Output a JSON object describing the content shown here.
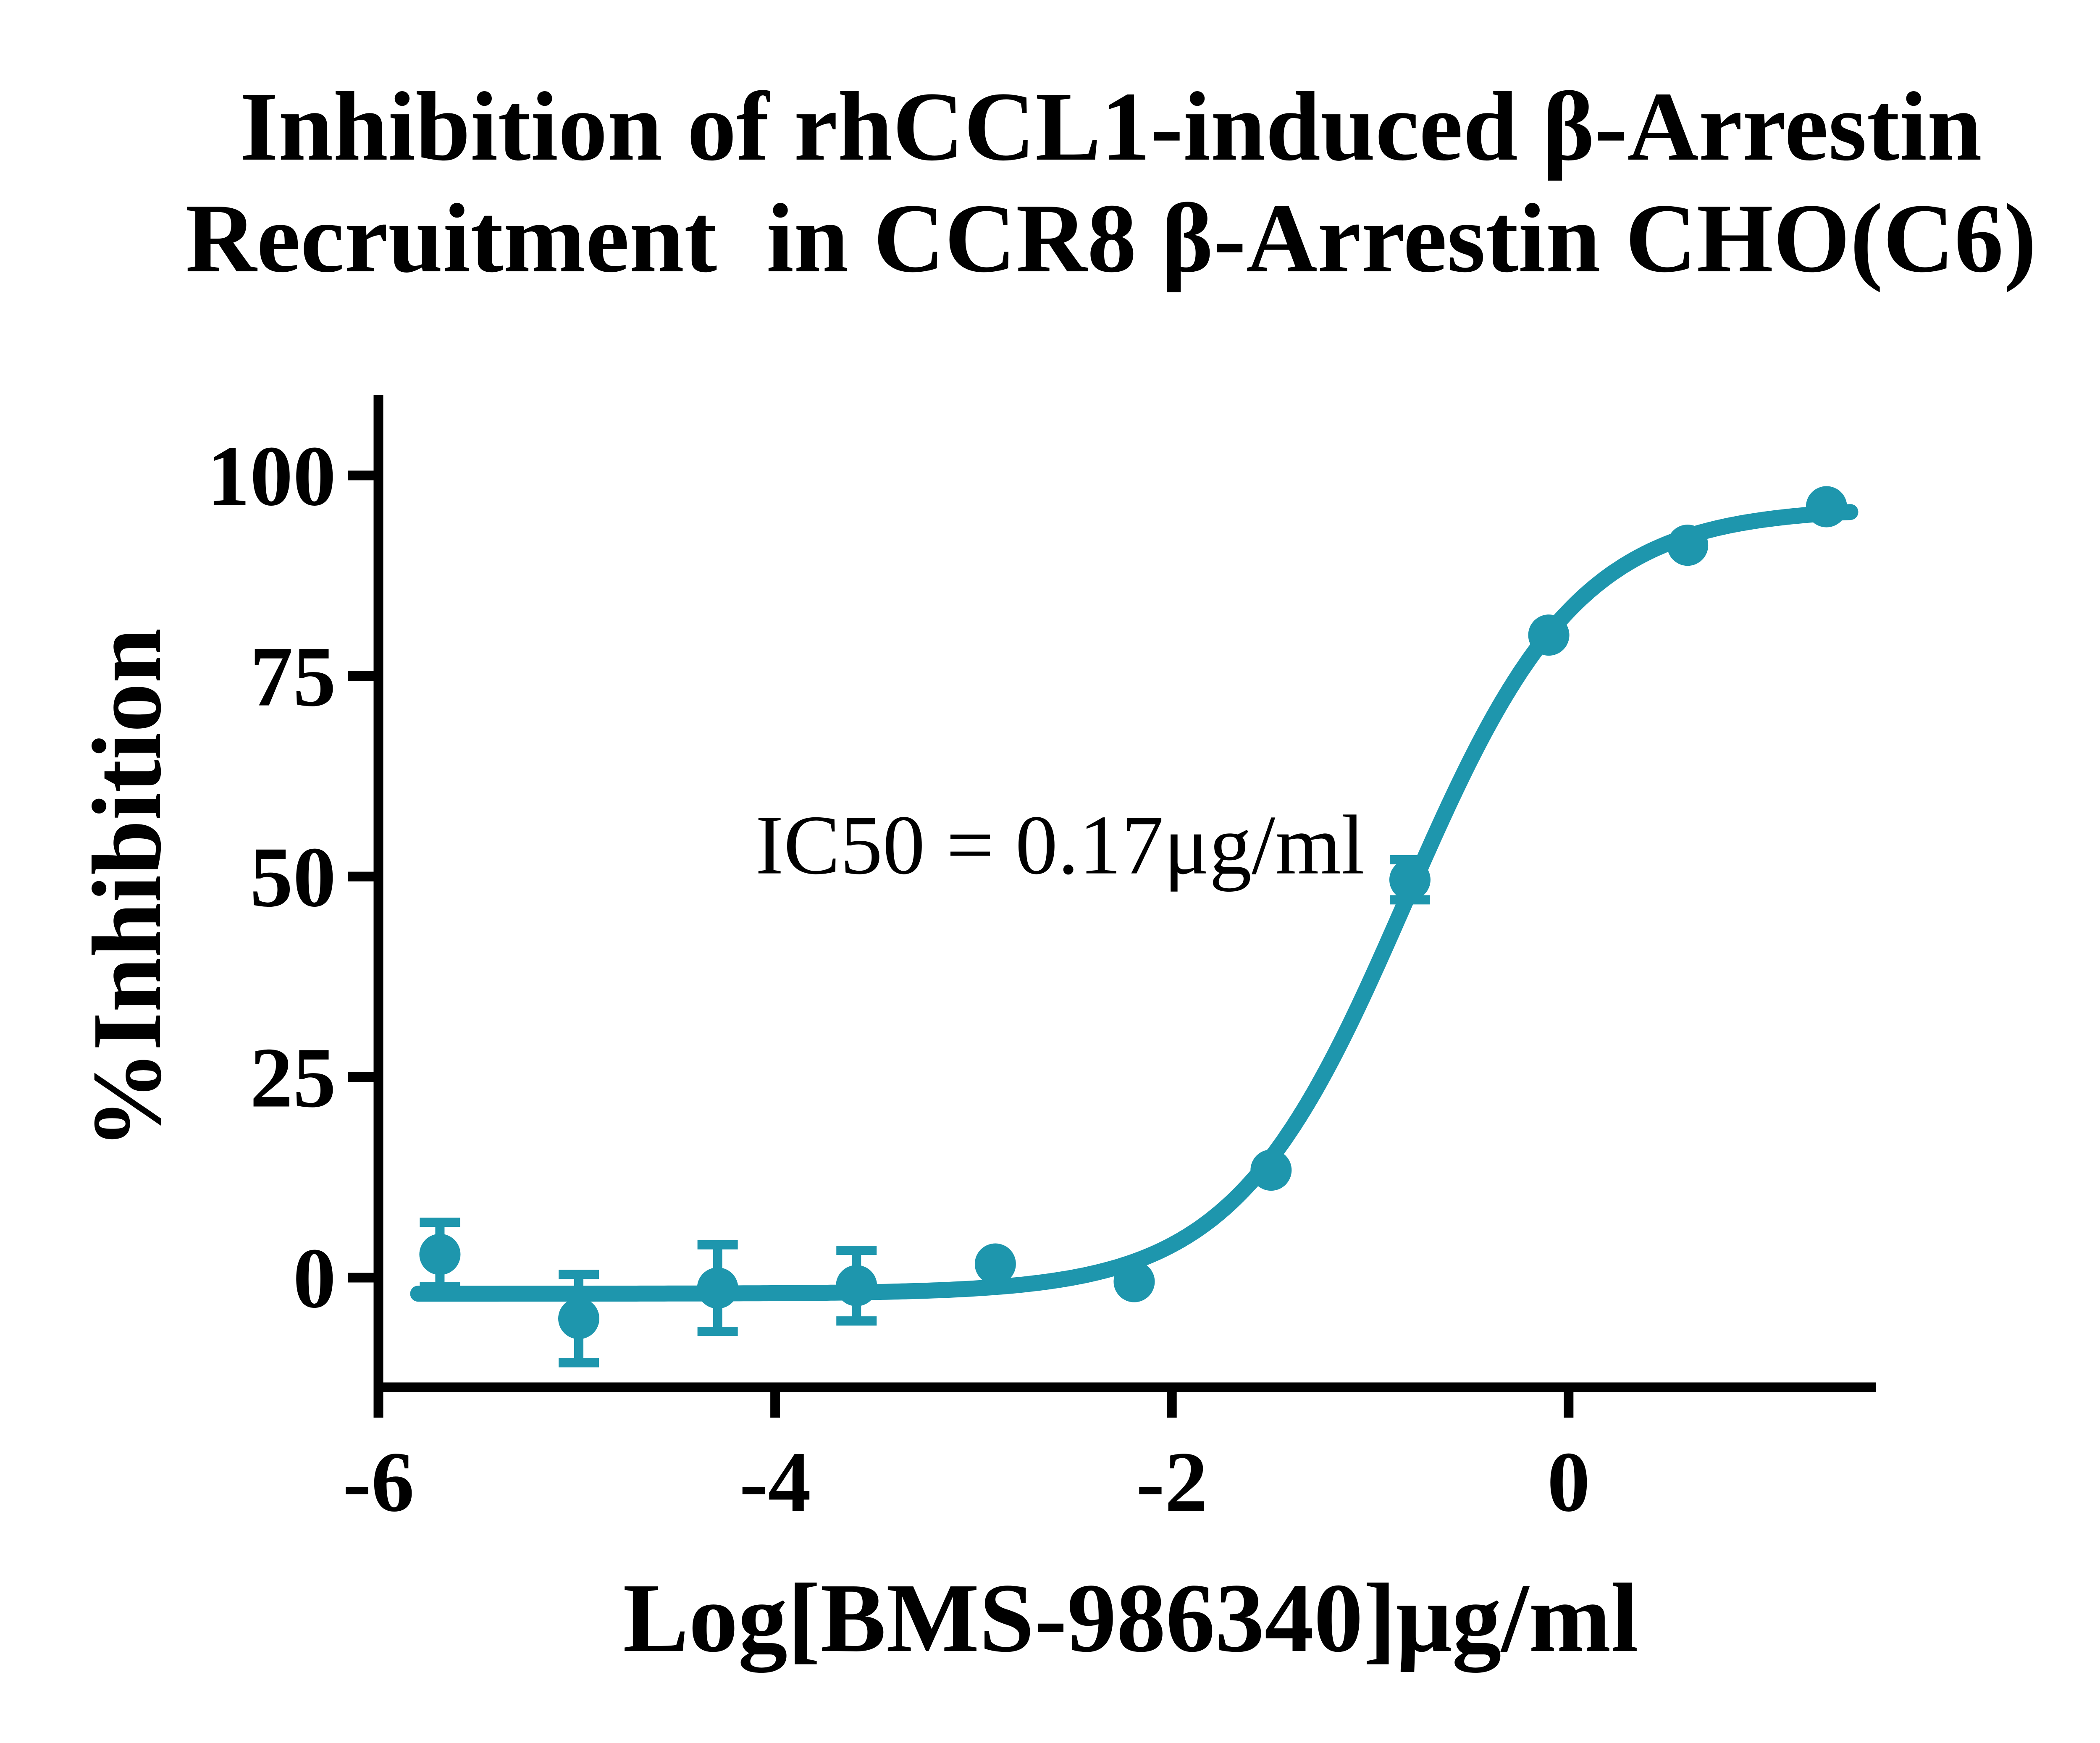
{
  "title": {
    "line1": "Inhibition of rhCCL1-induced β-Arrestin",
    "line2": "Recruitment  in CCR8 β-Arrestin CHO(C6)"
  },
  "chart_data": {
    "type": "scatter",
    "title": "Inhibition of rhCCL1-induced β-Arrestin Recruitment  in CCR8 β-Arrestin CHO(C6)",
    "title_lines": [
      "Inhibition of rhCCL1-induced β-Arrestin",
      "Recruitment  in CCR8 β-Arrestin CHO(C6)"
    ],
    "xlabel": "Log[BMS-986340]μg/ml",
    "ylabel": "%Inhibition",
    "annotation": "IC50 = 0.17μg/ml",
    "ic50_value_text": "0.17μg/ml",
    "x_tick_labels": [
      "-6",
      "-4",
      "-2",
      "0"
    ],
    "x_tick_values": [
      -6,
      -4,
      -2,
      0
    ],
    "y_tick_labels": [
      "0",
      "25",
      "50",
      "75",
      "100"
    ],
    "y_tick_values": [
      0,
      25,
      50,
      75,
      100
    ],
    "xlim": [
      -6.03,
      1.55
    ],
    "ylim": [
      -14,
      110
    ],
    "grid": false,
    "legend": "none",
    "accent_color": "#1E96AD",
    "series": [
      {
        "name": "BMS-986340",
        "color": "#1E96AD",
        "marker": "circle",
        "points": [
          {
            "x": -5.69,
            "y": 2.9,
            "sem": 4.0
          },
          {
            "x": -4.99,
            "y": -5.1,
            "sem": 5.5
          },
          {
            "x": -4.29,
            "y": -1.3,
            "sem": 5.4
          },
          {
            "x": -3.59,
            "y": -1.0,
            "sem": 4.4
          },
          {
            "x": -2.89,
            "y": 1.7,
            "sem": 0
          },
          {
            "x": -2.19,
            "y": -0.5,
            "sem": 0
          },
          {
            "x": -1.5,
            "y": 13.4,
            "sem": 0
          },
          {
            "x": -0.8,
            "y": 49.6,
            "sem": 2.5
          },
          {
            "x": -0.1,
            "y": 80.1,
            "sem": 0
          },
          {
            "x": 0.6,
            "y": 91.3,
            "sem": 0
          },
          {
            "x": 1.3,
            "y": 96.1,
            "sem": 0
          }
        ]
      }
    ],
    "fit_curve": {
      "model": "four_parameter_logistic",
      "bottom": -2,
      "top": 96,
      "log_ic50": -0.82,
      "hill": 1.0,
      "x_start": -5.8,
      "x_end": 1.42
    }
  }
}
